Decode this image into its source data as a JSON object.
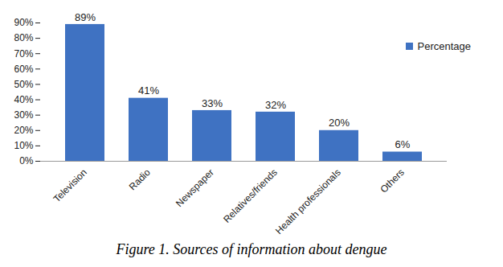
{
  "chart_data": {
    "type": "bar",
    "title": "Figure 1. Sources of information about dengue",
    "categories": [
      "Television",
      "Radio",
      "Newspaper",
      "Relatives/friends",
      "Health professionals",
      "Others"
    ],
    "series": [
      {
        "name": "Percentage",
        "color": "#3f72c2",
        "values": [
          89,
          41,
          33,
          32,
          20,
          6
        ],
        "value_labels": [
          "89%",
          "41%",
          "33%",
          "32%",
          "20%",
          "6%"
        ]
      }
    ],
    "ylim": [
      0,
      90
    ],
    "yticks": [
      {
        "value": 0,
        "label": "0%"
      },
      {
        "value": 10,
        "label": "10%"
      },
      {
        "value": 20,
        "label": "20%"
      },
      {
        "value": 30,
        "label": "30%"
      },
      {
        "value": 40,
        "label": "40%"
      },
      {
        "value": 50,
        "label": "50%"
      },
      {
        "value": 60,
        "label": "60%"
      },
      {
        "value": 70,
        "label": "70%"
      },
      {
        "value": 80,
        "label": "80%"
      },
      {
        "value": 90,
        "label": "90%"
      }
    ],
    "data_labels": true,
    "legend": "top-right"
  }
}
